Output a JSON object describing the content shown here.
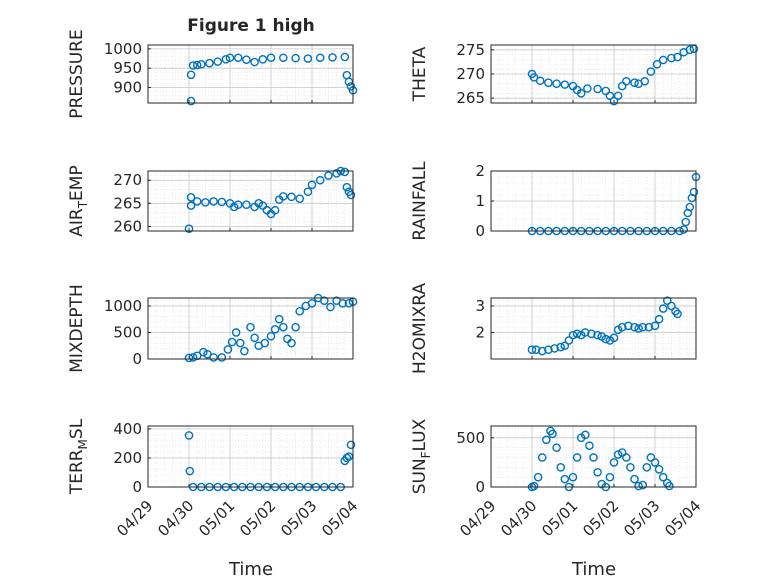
{
  "chart_data": {
    "type": "scatter",
    "title": "Figure 1 high",
    "xlabel": "Time",
    "x_ticks": [
      "04/29",
      "04/30",
      "05/01",
      "05/02",
      "05/03",
      "05/04"
    ],
    "xlim": [
      0,
      5
    ],
    "marker_color": "#0072BD",
    "grid": "on (major and minor)",
    "panels": [
      {
        "id": "pressure",
        "ylabel": "PRESSURE",
        "ylim": [
          860,
          1010
        ],
        "yticks": [
          900,
          950,
          1000
        ],
        "points": [
          [
            1.05,
            865
          ],
          [
            1.05,
            933
          ],
          [
            1.1,
            957
          ],
          [
            1.2,
            958
          ],
          [
            1.3,
            960
          ],
          [
            1.5,
            963
          ],
          [
            1.7,
            967
          ],
          [
            1.9,
            973
          ],
          [
            2.0,
            977
          ],
          [
            2.2,
            977
          ],
          [
            2.4,
            972
          ],
          [
            2.6,
            966
          ],
          [
            2.8,
            973
          ],
          [
            3.0,
            977
          ],
          [
            3.3,
            977
          ],
          [
            3.6,
            976
          ],
          [
            3.9,
            975
          ],
          [
            4.2,
            977
          ],
          [
            4.5,
            978
          ],
          [
            4.8,
            979
          ],
          [
            4.85,
            932
          ],
          [
            4.9,
            915
          ],
          [
            4.95,
            903
          ],
          [
            5.0,
            893
          ]
        ]
      },
      {
        "id": "theta",
        "ylabel": "THETA",
        "ylim": [
          264,
          276
        ],
        "yticks": [
          265,
          270,
          275
        ],
        "points": [
          [
            1.0,
            270
          ],
          [
            1.05,
            269.3
          ],
          [
            1.2,
            268.6
          ],
          [
            1.4,
            268.2
          ],
          [
            1.6,
            268.0
          ],
          [
            1.8,
            267.8
          ],
          [
            2.0,
            267.5
          ],
          [
            2.1,
            266.7
          ],
          [
            2.2,
            266.0
          ],
          [
            2.35,
            267.0
          ],
          [
            2.6,
            266.9
          ],
          [
            2.8,
            266.5
          ],
          [
            2.9,
            265.5
          ],
          [
            3.0,
            264.4
          ],
          [
            3.1,
            265.5
          ],
          [
            3.2,
            267.5
          ],
          [
            3.3,
            268.5
          ],
          [
            3.5,
            268.2
          ],
          [
            3.6,
            268.0
          ],
          [
            3.75,
            268.5
          ],
          [
            3.9,
            270.5
          ],
          [
            4.05,
            272.0
          ],
          [
            4.2,
            272.9
          ],
          [
            4.4,
            273.3
          ],
          [
            4.55,
            273.5
          ],
          [
            4.7,
            274.5
          ],
          [
            4.85,
            275.0
          ],
          [
            4.95,
            275.2
          ]
        ]
      },
      {
        "id": "air_temp",
        "ylabel": "AIR_TEMP",
        "ylim": [
          259,
          272
        ],
        "yticks": [
          260,
          265,
          270
        ],
        "points": [
          [
            1.0,
            259.5
          ],
          [
            1.05,
            264.5
          ],
          [
            1.05,
            266.3
          ],
          [
            1.2,
            265.4
          ],
          [
            1.4,
            265.2
          ],
          [
            1.6,
            265.4
          ],
          [
            1.8,
            265.3
          ],
          [
            2.0,
            265.0
          ],
          [
            2.1,
            264.2
          ],
          [
            2.2,
            264.7
          ],
          [
            2.4,
            264.7
          ],
          [
            2.6,
            264.2
          ],
          [
            2.7,
            265.0
          ],
          [
            2.8,
            264.5
          ],
          [
            2.9,
            263.5
          ],
          [
            3.0,
            262.7
          ],
          [
            3.1,
            263.5
          ],
          [
            3.2,
            265.8
          ],
          [
            3.3,
            266.5
          ],
          [
            3.5,
            266.4
          ],
          [
            3.7,
            266.0
          ],
          [
            3.9,
            267.5
          ],
          [
            4.0,
            269.0
          ],
          [
            4.2,
            270.0
          ],
          [
            4.4,
            271.0
          ],
          [
            4.6,
            271.5
          ],
          [
            4.7,
            272.0
          ],
          [
            4.8,
            271.8
          ],
          [
            4.85,
            268.5
          ],
          [
            4.9,
            267.5
          ],
          [
            4.95,
            266.8
          ]
        ]
      },
      {
        "id": "rainfall",
        "ylabel": "RAINFALL",
        "ylim": [
          0,
          2
        ],
        "yticks": [
          0,
          1,
          2
        ],
        "points": [
          [
            1.0,
            0
          ],
          [
            1.2,
            0
          ],
          [
            1.4,
            0
          ],
          [
            1.6,
            0
          ],
          [
            1.8,
            0
          ],
          [
            2.0,
            0
          ],
          [
            2.2,
            0
          ],
          [
            2.4,
            0
          ],
          [
            2.6,
            0
          ],
          [
            2.8,
            0
          ],
          [
            3.0,
            0
          ],
          [
            3.2,
            0
          ],
          [
            3.4,
            0
          ],
          [
            3.6,
            0
          ],
          [
            3.8,
            0
          ],
          [
            4.0,
            0
          ],
          [
            4.2,
            0
          ],
          [
            4.4,
            0
          ],
          [
            4.6,
            0
          ],
          [
            4.7,
            0.05
          ],
          [
            4.75,
            0.3
          ],
          [
            4.8,
            0.6
          ],
          [
            4.85,
            0.8
          ],
          [
            4.9,
            1.1
          ],
          [
            4.95,
            1.3
          ],
          [
            5.0,
            1.8
          ]
        ]
      },
      {
        "id": "mixdepth",
        "ylabel": "MIXDEPTH",
        "ylim": [
          0,
          1150
        ],
        "yticks": [
          0,
          500,
          1000
        ],
        "points": [
          [
            1.0,
            20
          ],
          [
            1.1,
            30
          ],
          [
            1.2,
            60
          ],
          [
            1.35,
            130
          ],
          [
            1.45,
            90
          ],
          [
            1.6,
            30
          ],
          [
            1.8,
            30
          ],
          [
            1.95,
            180
          ],
          [
            2.05,
            320
          ],
          [
            2.15,
            500
          ],
          [
            2.25,
            300
          ],
          [
            2.35,
            150
          ],
          [
            2.5,
            600
          ],
          [
            2.6,
            400
          ],
          [
            2.7,
            250
          ],
          [
            2.85,
            300
          ],
          [
            3.0,
            430
          ],
          [
            3.1,
            560
          ],
          [
            3.2,
            750
          ],
          [
            3.3,
            600
          ],
          [
            3.4,
            380
          ],
          [
            3.5,
            300
          ],
          [
            3.6,
            600
          ],
          [
            3.7,
            900
          ],
          [
            3.85,
            1000
          ],
          [
            4.0,
            1050
          ],
          [
            4.15,
            1150
          ],
          [
            4.3,
            1100
          ],
          [
            4.45,
            980
          ],
          [
            4.6,
            1100
          ],
          [
            4.75,
            1050
          ],
          [
            4.9,
            1050
          ],
          [
            5.0,
            1080
          ]
        ]
      },
      {
        "id": "h2omixra",
        "ylabel": "H2OMIXRA",
        "ylim": [
          1.0,
          3.3
        ],
        "yticks": [
          2,
          3
        ],
        "points": [
          [
            1.0,
            1.35
          ],
          [
            1.1,
            1.35
          ],
          [
            1.25,
            1.3
          ],
          [
            1.4,
            1.35
          ],
          [
            1.55,
            1.4
          ],
          [
            1.7,
            1.45
          ],
          [
            1.8,
            1.5
          ],
          [
            1.9,
            1.7
          ],
          [
            2.0,
            1.9
          ],
          [
            2.1,
            1.95
          ],
          [
            2.2,
            1.9
          ],
          [
            2.3,
            2.0
          ],
          [
            2.45,
            1.95
          ],
          [
            2.6,
            1.9
          ],
          [
            2.7,
            1.85
          ],
          [
            2.8,
            1.75
          ],
          [
            2.9,
            1.7
          ],
          [
            3.0,
            1.8
          ],
          [
            3.1,
            2.1
          ],
          [
            3.2,
            2.2
          ],
          [
            3.35,
            2.25
          ],
          [
            3.5,
            2.2
          ],
          [
            3.6,
            2.15
          ],
          [
            3.7,
            2.2
          ],
          [
            3.85,
            2.2
          ],
          [
            4.0,
            2.25
          ],
          [
            4.1,
            2.5
          ],
          [
            4.2,
            2.9
          ],
          [
            4.3,
            3.2
          ],
          [
            4.4,
            3.0
          ],
          [
            4.5,
            2.8
          ],
          [
            4.55,
            2.7
          ]
        ]
      },
      {
        "id": "terr_msl",
        "ylabel": "TERR_MSL",
        "ylim": [
          0,
          420
        ],
        "yticks": [
          0,
          200,
          400
        ],
        "points": [
          [
            1.0,
            355
          ],
          [
            1.02,
            110
          ],
          [
            1.1,
            0
          ],
          [
            1.3,
            0
          ],
          [
            1.5,
            0
          ],
          [
            1.7,
            0
          ],
          [
            1.9,
            0
          ],
          [
            2.1,
            0
          ],
          [
            2.3,
            0
          ],
          [
            2.5,
            0
          ],
          [
            2.7,
            0
          ],
          [
            2.9,
            0
          ],
          [
            3.1,
            0
          ],
          [
            3.3,
            0
          ],
          [
            3.5,
            0
          ],
          [
            3.7,
            0
          ],
          [
            3.9,
            0
          ],
          [
            4.1,
            0
          ],
          [
            4.3,
            0
          ],
          [
            4.5,
            0
          ],
          [
            4.7,
            0
          ],
          [
            4.8,
            180
          ],
          [
            4.85,
            200
          ],
          [
            4.9,
            210
          ],
          [
            4.95,
            290
          ]
        ]
      },
      {
        "id": "sun_flux",
        "ylabel": "SUN_FLUX",
        "ylim": [
          0,
          620
        ],
        "yticks": [
          0,
          500
        ],
        "points": [
          [
            1.0,
            0
          ],
          [
            1.05,
            10
          ],
          [
            1.15,
            100
          ],
          [
            1.25,
            300
          ],
          [
            1.35,
            480
          ],
          [
            1.45,
            570
          ],
          [
            1.5,
            540
          ],
          [
            1.6,
            400
          ],
          [
            1.7,
            200
          ],
          [
            1.8,
            80
          ],
          [
            1.9,
            0
          ],
          [
            2.0,
            100
          ],
          [
            2.1,
            300
          ],
          [
            2.2,
            500
          ],
          [
            2.3,
            530
          ],
          [
            2.4,
            420
          ],
          [
            2.5,
            300
          ],
          [
            2.6,
            150
          ],
          [
            2.7,
            30
          ],
          [
            2.8,
            0
          ],
          [
            2.9,
            100
          ],
          [
            3.0,
            250
          ],
          [
            3.1,
            330
          ],
          [
            3.2,
            350
          ],
          [
            3.3,
            300
          ],
          [
            3.4,
            200
          ],
          [
            3.5,
            80
          ],
          [
            3.6,
            10
          ],
          [
            3.7,
            20
          ],
          [
            3.8,
            200
          ],
          [
            3.9,
            300
          ],
          [
            4.0,
            250
          ],
          [
            4.1,
            180
          ],
          [
            4.2,
            100
          ],
          [
            4.3,
            40
          ],
          [
            4.35,
            10
          ]
        ]
      }
    ]
  }
}
